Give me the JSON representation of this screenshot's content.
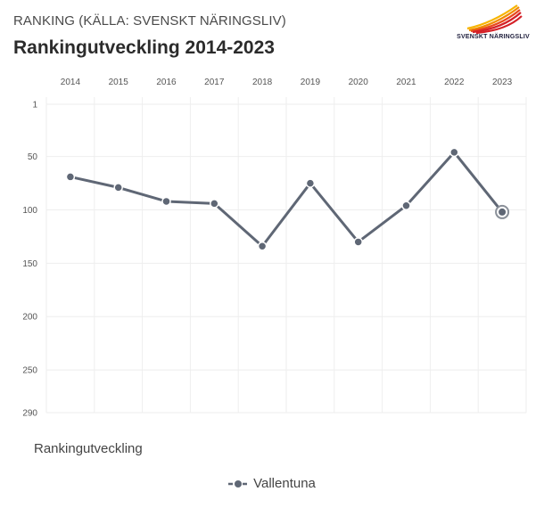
{
  "header": {
    "subtitle": "RANKING (KÄLLA: SVENSKT NÄRINGSLIV)",
    "title": "Rankingutveckling 2014-2023"
  },
  "logo": {
    "text": "SVENSKT NÄRINGSLIV",
    "colors": [
      "#f7b500",
      "#f08a00",
      "#e8491d",
      "#d42027"
    ]
  },
  "chart_data": {
    "type": "line",
    "x": [
      "2014",
      "2015",
      "2016",
      "2017",
      "2018",
      "2019",
      "2020",
      "2021",
      "2022",
      "2023"
    ],
    "series": [
      {
        "name": "Vallentuna",
        "values": [
          69,
          79,
          92,
          94,
          134,
          75,
          130,
          96,
          46,
          102
        ]
      }
    ],
    "y_ticks": [
      1,
      50,
      100,
      150,
      200,
      250,
      290
    ],
    "ylim": [
      1,
      290
    ],
    "y_reversed": true,
    "xlabel": "Rankingutveckling",
    "ylabel": "",
    "x_axis_position": "top",
    "grid": true,
    "legend_position": "bottom",
    "highlighted_point": "2023",
    "line_color": "#5f6775",
    "grid_color": "#eeeeee"
  }
}
